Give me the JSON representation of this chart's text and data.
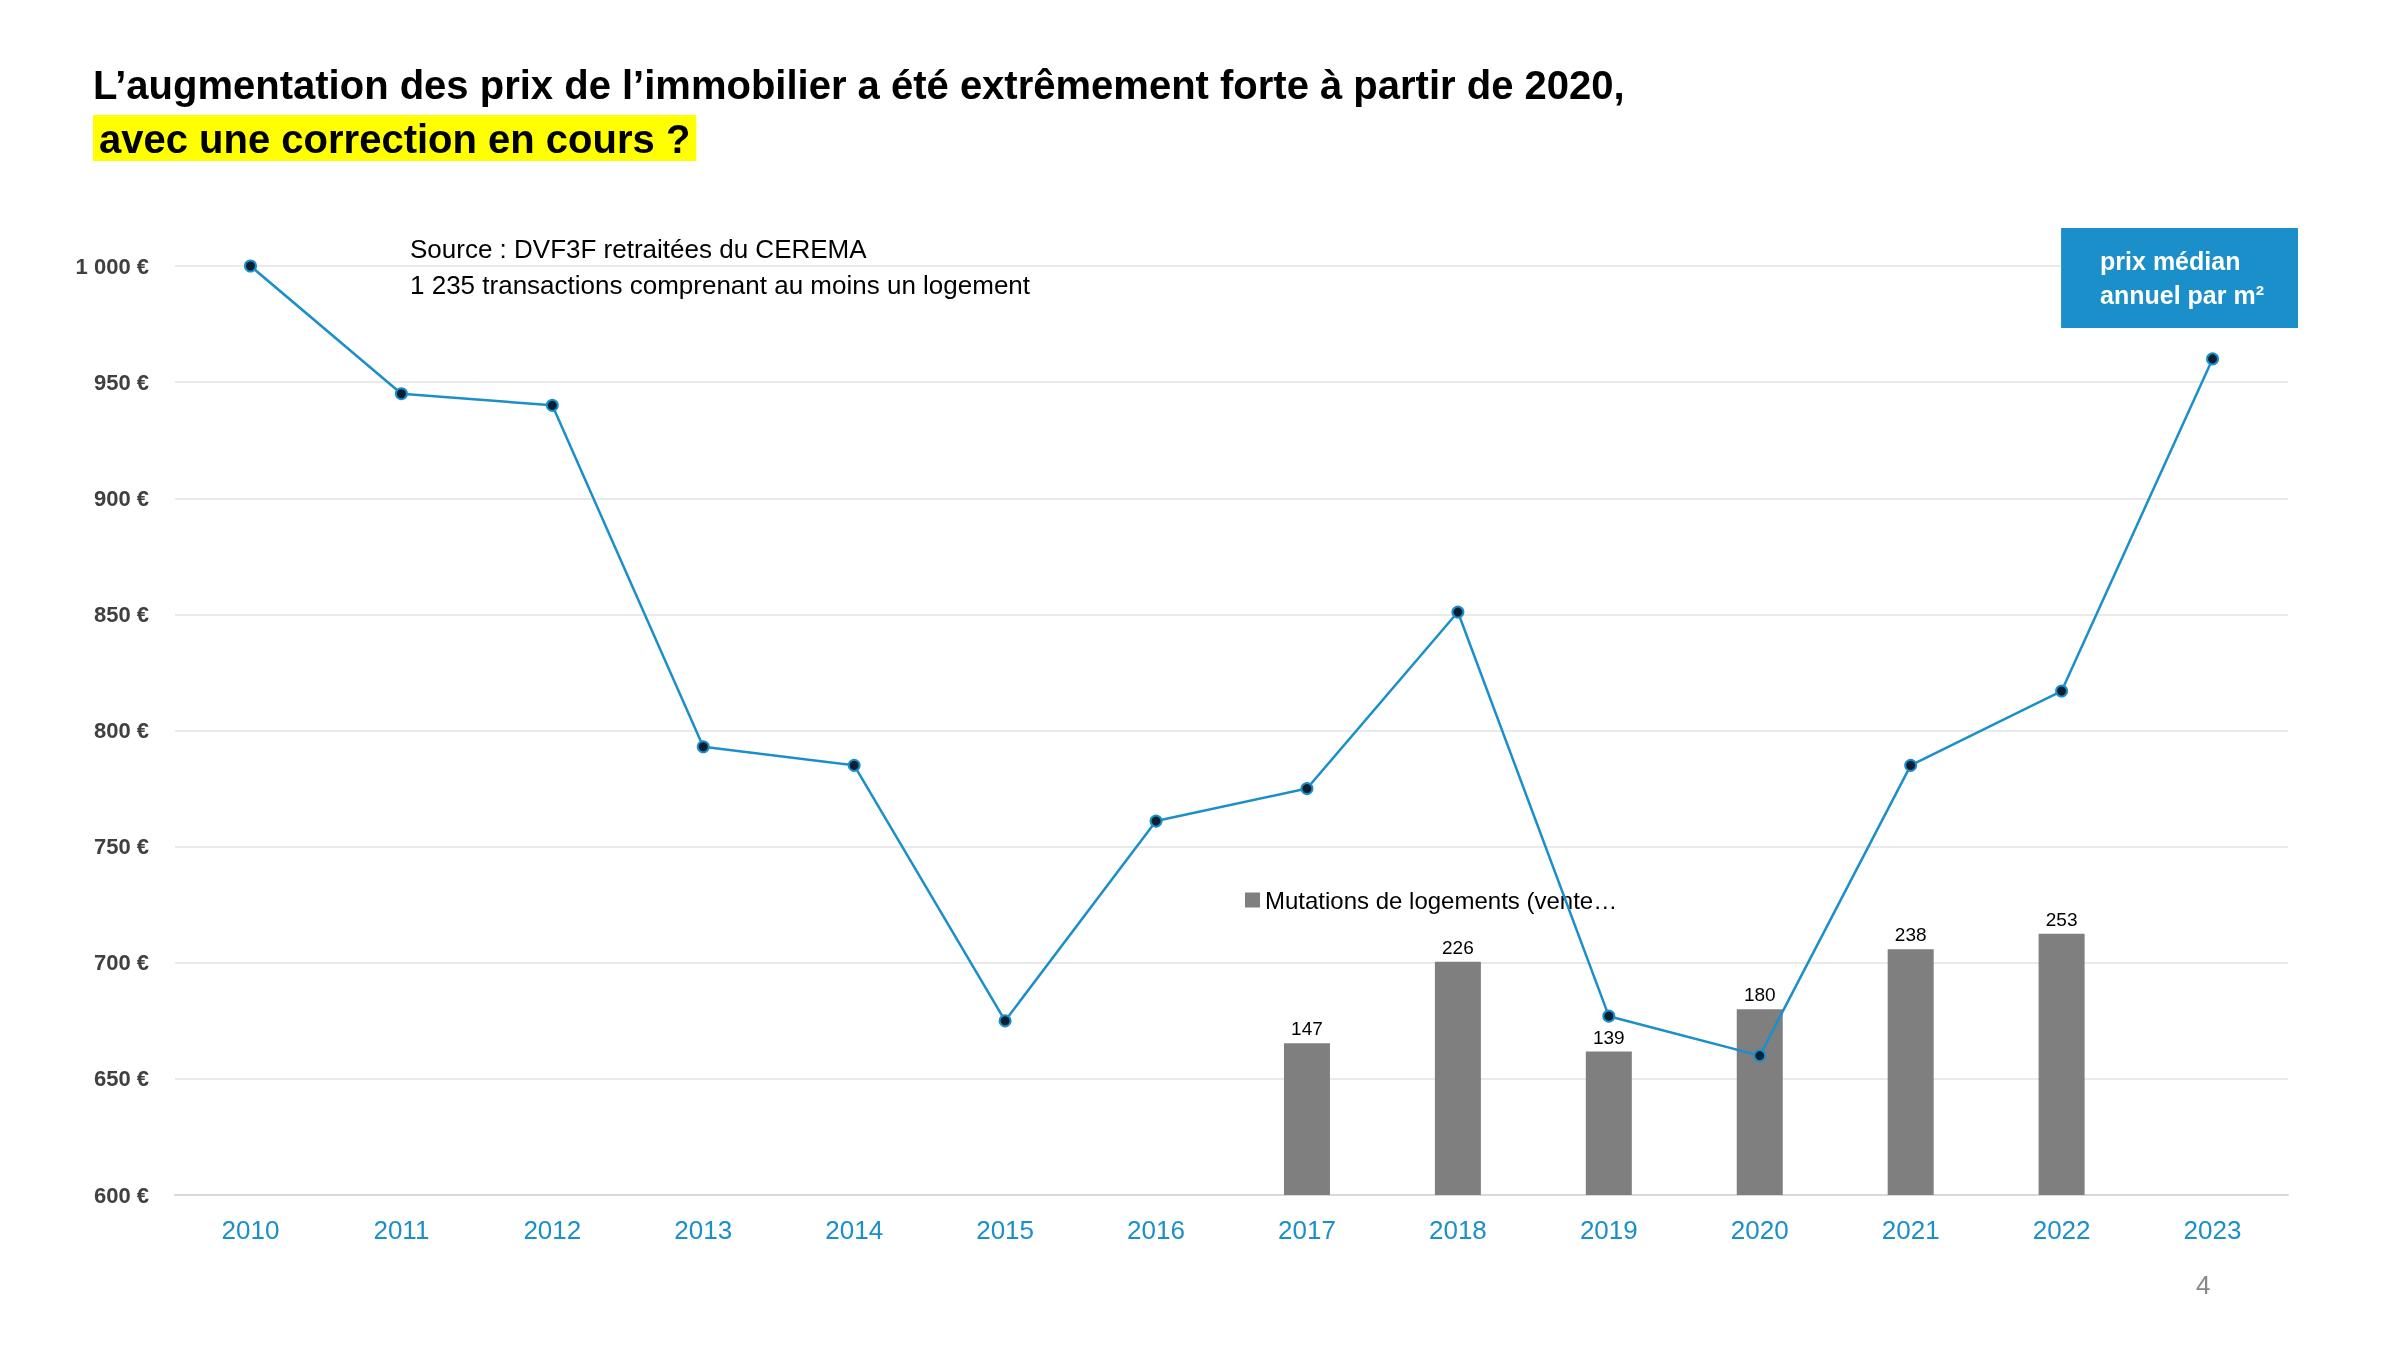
{
  "chart_data": {
    "type": "line",
    "title": "L’augmentation des prix de l’immobilier a été extrêmement forte à partir de 2020,",
    "subtitle": "avec une correction en cours ?",
    "categories": [
      "2010",
      "2011",
      "2012",
      "2013",
      "2014",
      "2015",
      "2016",
      "2017",
      "2018",
      "2019",
      "2020",
      "2021",
      "2022",
      "2023"
    ],
    "series": [
      {
        "name": "Mutations de logements (vente…",
        "type": "bar",
        "axis": "y2",
        "color": "#7f7f7f",
        "data_labels": true,
        "values": [
          null,
          null,
          null,
          null,
          null,
          null,
          null,
          147,
          226,
          139,
          180,
          238,
          253,
          null
        ]
      },
      {
        "name": "prix médian annuel par m²",
        "color": "#1a8fc9",
        "values": [
          1000,
          945,
          940,
          793,
          785,
          675,
          761,
          775,
          851,
          677,
          660,
          785,
          817,
          960
        ]
      }
    ],
    "ylim": [
      600,
      1000
    ],
    "yticks": [
      {
        "value": 600,
        "label": "600 €"
      },
      {
        "value": 650,
        "label": "650 €"
      },
      {
        "value": 700,
        "label": "700 €"
      },
      {
        "value": 750,
        "label": "750 €"
      },
      {
        "value": 800,
        "label": "800 €"
      },
      {
        "value": 850,
        "label": "850 €"
      },
      {
        "value": 900,
        "label": "900 €"
      },
      {
        "value": 950,
        "label": "950 €"
      },
      {
        "value": 1000,
        "label": "1 000 €"
      }
    ],
    "y2lim": [
      0,
      900
    ],
    "grid": "y",
    "marker": "circle",
    "line_style": "solid",
    "annotations": [
      "Source : DVF3F retraitées du CEREMA",
      "1 235 transactions comprenant au moins un logement",
      "4"
    ]
  }
}
